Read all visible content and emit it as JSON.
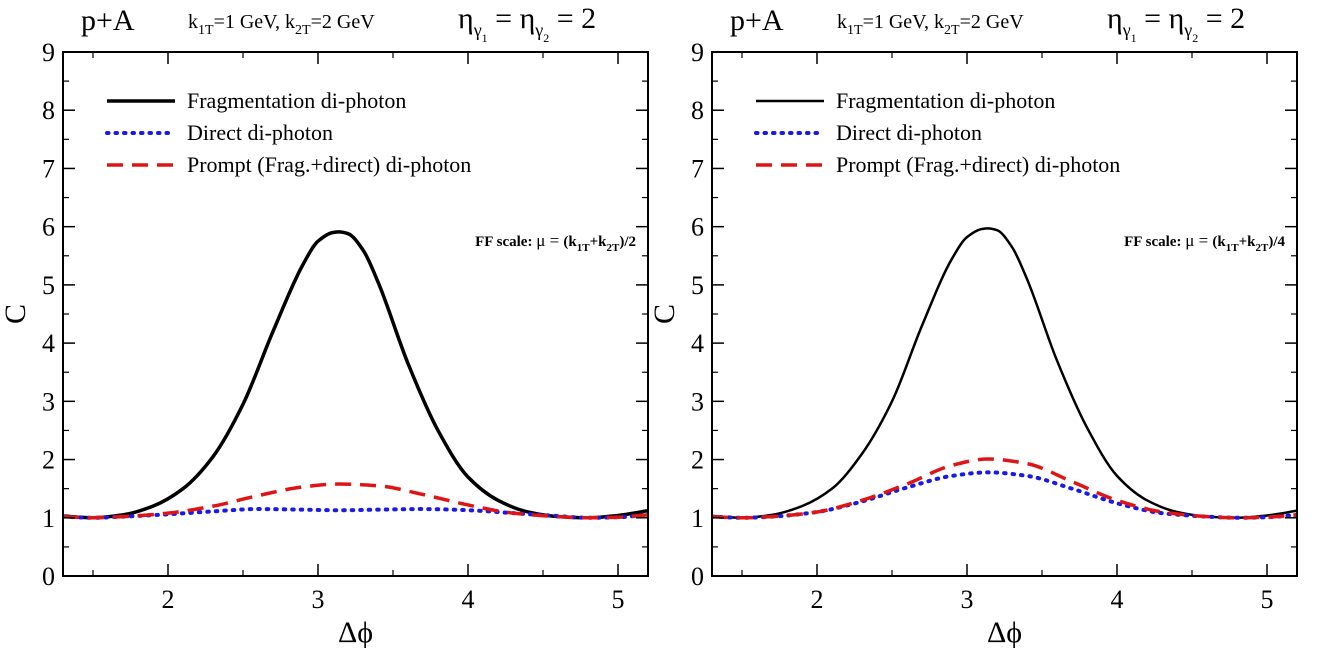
{
  "chart_data": [
    {
      "type": "line",
      "header": {
        "system": "p+A",
        "k1": "k",
        "k1_sub": "1T",
        "k1_rest": "=1 GeV,",
        "k2": "k",
        "k2_sub": "2T",
        "k2_rest": "=2 GeV",
        "eta_a": "η",
        "eta_a_sub": "γ",
        "eta_a_subsub": "1",
        "eta_eq": "=",
        "eta_b": "η",
        "eta_b_sub": "γ",
        "eta_b_subsub": "2",
        "eta_val": "= 2"
      },
      "annotation": {
        "prefix": "FF scale: ",
        "mu": "μ = ",
        "open": "(k",
        "sub1": "1T",
        "plus": "+k",
        "sub2": "2T",
        "close": ")/2"
      },
      "xlabel": "Δϕ",
      "ylabel": "C",
      "xlim": [
        1.3,
        5.2
      ],
      "ylim": [
        0,
        9
      ],
      "xticks": [
        2,
        3,
        4,
        5
      ],
      "yticks": [
        0,
        1,
        2,
        3,
        4,
        5,
        6,
        7,
        8,
        9
      ],
      "legend_position": "top-left",
      "series": [
        {
          "name": "Fragmentation di-photon",
          "color": "#000000",
          "style": "solid",
          "width": 3.5,
          "x": [
            1.3,
            1.5,
            1.7,
            1.9,
            2.1,
            2.3,
            2.5,
            2.7,
            2.9,
            3.0,
            3.1,
            3.14,
            3.2,
            3.3,
            3.4,
            3.6,
            3.8,
            4.0,
            4.2,
            4.4,
            4.6,
            4.8,
            5.0,
            5.2
          ],
          "y": [
            1.03,
            1.0,
            1.05,
            1.2,
            1.5,
            2.05,
            2.95,
            4.2,
            5.35,
            5.75,
            5.9,
            5.91,
            5.88,
            5.6,
            5.05,
            3.65,
            2.5,
            1.7,
            1.3,
            1.1,
            1.02,
            1.0,
            1.04,
            1.12
          ]
        },
        {
          "name": "Direct di-photon",
          "color": "#1a1ae6",
          "style": "dotted",
          "width": 4,
          "x": [
            1.3,
            1.5,
            1.7,
            2.0,
            2.3,
            2.6,
            2.9,
            3.14,
            3.4,
            3.7,
            4.0,
            4.3,
            4.6,
            4.8,
            5.0,
            5.2
          ],
          "y": [
            1.02,
            1.0,
            1.02,
            1.06,
            1.11,
            1.15,
            1.14,
            1.13,
            1.14,
            1.15,
            1.13,
            1.08,
            1.03,
            1.0,
            1.01,
            1.05
          ]
        },
        {
          "name": "Prompt (Frag.+direct) di-photon",
          "color": "#e01414",
          "style": "dashed",
          "width": 3.5,
          "x": [
            1.3,
            1.5,
            1.7,
            2.0,
            2.3,
            2.6,
            2.9,
            3.14,
            3.4,
            3.7,
            4.0,
            4.3,
            4.6,
            4.8,
            5.0,
            5.2
          ],
          "y": [
            1.02,
            1.0,
            1.02,
            1.08,
            1.2,
            1.38,
            1.53,
            1.58,
            1.55,
            1.4,
            1.22,
            1.08,
            1.02,
            1.0,
            1.01,
            1.05
          ]
        }
      ]
    },
    {
      "type": "line",
      "header": {
        "system": "p+A",
        "k1": "k",
        "k1_sub": "1T",
        "k1_rest": "=1 GeV,",
        "k2": "k",
        "k2_sub": "2T",
        "k2_rest": "=2 GeV",
        "eta_a": "η",
        "eta_a_sub": "γ",
        "eta_a_subsub": "1",
        "eta_eq": "=",
        "eta_b": "η",
        "eta_b_sub": "γ",
        "eta_b_subsub": "2",
        "eta_val": "= 2"
      },
      "annotation": {
        "prefix": "FF scale: ",
        "mu": "μ = ",
        "open": "(k",
        "sub1": "1T",
        "plus": "+k",
        "sub2": "2T",
        "close": ")/4"
      },
      "xlabel": "Δϕ",
      "ylabel": "C",
      "xlim": [
        1.3,
        5.2
      ],
      "ylim": [
        0,
        9
      ],
      "xticks": [
        2,
        3,
        4,
        5
      ],
      "yticks": [
        0,
        1,
        2,
        3,
        4,
        5,
        6,
        7,
        8,
        9
      ],
      "legend_position": "top-left",
      "series": [
        {
          "name": "Fragmentation di-photon",
          "color": "#000000",
          "style": "solid",
          "width": 2.5,
          "x": [
            1.3,
            1.5,
            1.7,
            1.9,
            2.1,
            2.3,
            2.5,
            2.7,
            2.9,
            3.0,
            3.1,
            3.14,
            3.2,
            3.3,
            3.4,
            3.6,
            3.8,
            4.0,
            4.2,
            4.4,
            4.6,
            4.8,
            5.0,
            5.2
          ],
          "y": [
            1.03,
            1.0,
            1.05,
            1.2,
            1.5,
            2.1,
            3.0,
            4.3,
            5.45,
            5.82,
            5.96,
            5.97,
            5.94,
            5.65,
            5.1,
            3.7,
            2.55,
            1.72,
            1.3,
            1.1,
            1.02,
            1.0,
            1.04,
            1.12
          ]
        },
        {
          "name": "Direct di-photon",
          "color": "#1a1ae6",
          "style": "dotted",
          "width": 4,
          "x": [
            1.3,
            1.5,
            1.7,
            2.0,
            2.3,
            2.6,
            2.9,
            3.14,
            3.4,
            3.7,
            4.0,
            4.3,
            4.6,
            4.8,
            5.0,
            5.2
          ],
          "y": [
            1.02,
            1.0,
            1.02,
            1.1,
            1.28,
            1.52,
            1.72,
            1.78,
            1.72,
            1.5,
            1.25,
            1.08,
            1.02,
            1.0,
            1.01,
            1.05
          ]
        },
        {
          "name": "Prompt (Frag.+direct) di-photon",
          "color": "#e01414",
          "style": "dashed",
          "width": 3.5,
          "x": [
            1.3,
            1.5,
            1.7,
            2.0,
            2.3,
            2.6,
            2.9,
            3.14,
            3.4,
            3.7,
            4.0,
            4.3,
            4.6,
            4.8,
            5.0,
            5.2
          ],
          "y": [
            1.02,
            1.0,
            1.02,
            1.1,
            1.3,
            1.58,
            1.9,
            2.01,
            1.93,
            1.62,
            1.3,
            1.1,
            1.02,
            1.0,
            1.01,
            1.05
          ]
        }
      ]
    }
  ]
}
